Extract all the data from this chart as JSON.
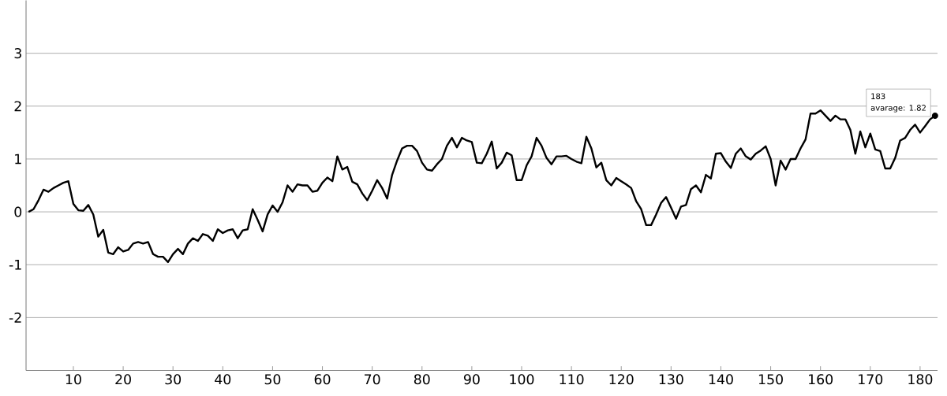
{
  "chart_data": {
    "type": "line",
    "color": "#000000",
    "grid": "y",
    "marker": "none",
    "line_style": "solid",
    "x": [
      1,
      2,
      3,
      4,
      5,
      6,
      7,
      8,
      9,
      10,
      11,
      12,
      13,
      14,
      15,
      16,
      17,
      18,
      19,
      20,
      21,
      22,
      23,
      24,
      25,
      26,
      27,
      28,
      29,
      30,
      31,
      32,
      33,
      34,
      35,
      36,
      37,
      38,
      39,
      40,
      41,
      42,
      43,
      44,
      45,
      46,
      47,
      48,
      49,
      50,
      51,
      52,
      53,
      54,
      55,
      56,
      57,
      58,
      59,
      60,
      61,
      62,
      63,
      64,
      65,
      66,
      67,
      68,
      69,
      70,
      71,
      72,
      73,
      74,
      75,
      76,
      77,
      78,
      79,
      80,
      81,
      82,
      83,
      84,
      85,
      86,
      87,
      88,
      89,
      90,
      91,
      92,
      93,
      94,
      95,
      96,
      97,
      98,
      99,
      100,
      101,
      102,
      103,
      104,
      105,
      106,
      107,
      108,
      109,
      110,
      111,
      112,
      113,
      114,
      115,
      116,
      117,
      118,
      119,
      120,
      121,
      122,
      123,
      124,
      125,
      126,
      127,
      128,
      129,
      130,
      131,
      132,
      133,
      134,
      135,
      136,
      137,
      138,
      139,
      140,
      141,
      142,
      143,
      144,
      145,
      146,
      147,
      148,
      149,
      150,
      151,
      152,
      153,
      154,
      155,
      156,
      157,
      158,
      159,
      160,
      161,
      162,
      163,
      164,
      165,
      166,
      167,
      168,
      169,
      170,
      171,
      172,
      173,
      174,
      175,
      176,
      177,
      178,
      179,
      180,
      181,
      182,
      183
    ],
    "values": [
      0,
      0.05,
      0.22,
      0.42,
      0.38,
      0.45,
      0.5,
      0.55,
      0.58,
      0.15,
      0.03,
      0.02,
      0.13,
      -0.05,
      -0.47,
      -0.34,
      -0.77,
      -0.8,
      -0.67,
      -0.75,
      -0.72,
      -0.6,
      -0.57,
      -0.6,
      -0.57,
      -0.8,
      -0.85,
      -0.85,
      -0.95,
      -0.8,
      -0.7,
      -0.8,
      -0.6,
      -0.5,
      -0.55,
      -0.42,
      -0.45,
      -0.55,
      -0.33,
      -0.4,
      -0.35,
      -0.33,
      -0.5,
      -0.35,
      -0.33,
      0.05,
      -0.15,
      -0.37,
      -0.05,
      0.12,
      0,
      0.18,
      0.5,
      0.38,
      0.52,
      0.5,
      0.5,
      0.38,
      0.4,
      0.55,
      0.65,
      0.58,
      1.05,
      0.8,
      0.85,
      0.57,
      0.52,
      0.35,
      0.22,
      0.4,
      0.6,
      0.45,
      0.25,
      0.7,
      0.97,
      1.2,
      1.25,
      1.25,
      1.15,
      0.93,
      0.8,
      0.78,
      0.9,
      1.0,
      1.25,
      1.4,
      1.22,
      1.4,
      1.35,
      1.32,
      0.93,
      0.92,
      1.1,
      1.33,
      0.82,
      0.93,
      1.12,
      1.07,
      0.6,
      0.6,
      0.88,
      1.05,
      1.4,
      1.25,
      1.02,
      0.9,
      1.05,
      1.05,
      1.06,
      1.0,
      0.95,
      0.92,
      1.42,
      1.2,
      0.84,
      0.93,
      0.6,
      0.5,
      0.64,
      0.58,
      0.52,
      0.45,
      0.2,
      0.05,
      -0.25,
      -0.25,
      -0.05,
      0.17,
      0.28,
      0.08,
      -0.13,
      0.1,
      0.13,
      0.43,
      0.5,
      0.37,
      0.7,
      0.63,
      1.1,
      1.11,
      0.95,
      0.83,
      1.1,
      1.2,
      1.05,
      0.99,
      1.1,
      1.16,
      1.24,
      1.0,
      0.5,
      0.97,
      0.8,
      1.0,
      1.0,
      1.2,
      1.37,
      1.86,
      1.86,
      1.92,
      1.82,
      1.72,
      1.82,
      1.75,
      1.75,
      1.55,
      1.1,
      1.52,
      1.22,
      1.48,
      1.18,
      1.15,
      0.82,
      0.82,
      1.02,
      1.35,
      1.4,
      1.55,
      1.65,
      1.5,
      1.62,
      1.75,
      1.82
    ],
    "xlim": [
      0.5,
      183.5
    ],
    "ylim": [
      -3,
      4
    ],
    "xticks": [
      10,
      20,
      30,
      40,
      50,
      60,
      70,
      80,
      90,
      100,
      110,
      120,
      130,
      140,
      150,
      160,
      170,
      180
    ],
    "yticks": [
      -2,
      -1,
      0,
      1,
      2,
      3
    ],
    "annotations": [
      "183",
      "avarage: 1.82"
    ]
  }
}
